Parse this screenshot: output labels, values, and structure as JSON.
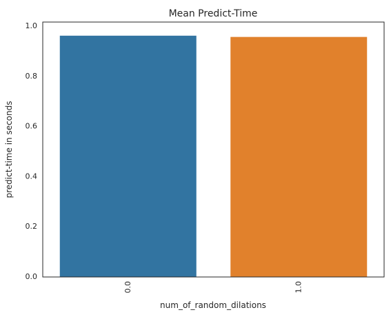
{
  "chart_data": {
    "type": "bar",
    "title": "Mean Predict-Time",
    "xlabel": "num_of_random_dilations",
    "ylabel": "predict-time in seconds",
    "categories": [
      "0.0",
      "1.0"
    ],
    "values": [
      0.962,
      0.957
    ],
    "colors": [
      "#3274a1",
      "#e1812c"
    ],
    "ylim": [
      0,
      1.0164
    ],
    "yticks": [
      "0.0",
      "0.2",
      "0.4",
      "0.6",
      "0.8",
      "1.0"
    ],
    "grid": false
  }
}
